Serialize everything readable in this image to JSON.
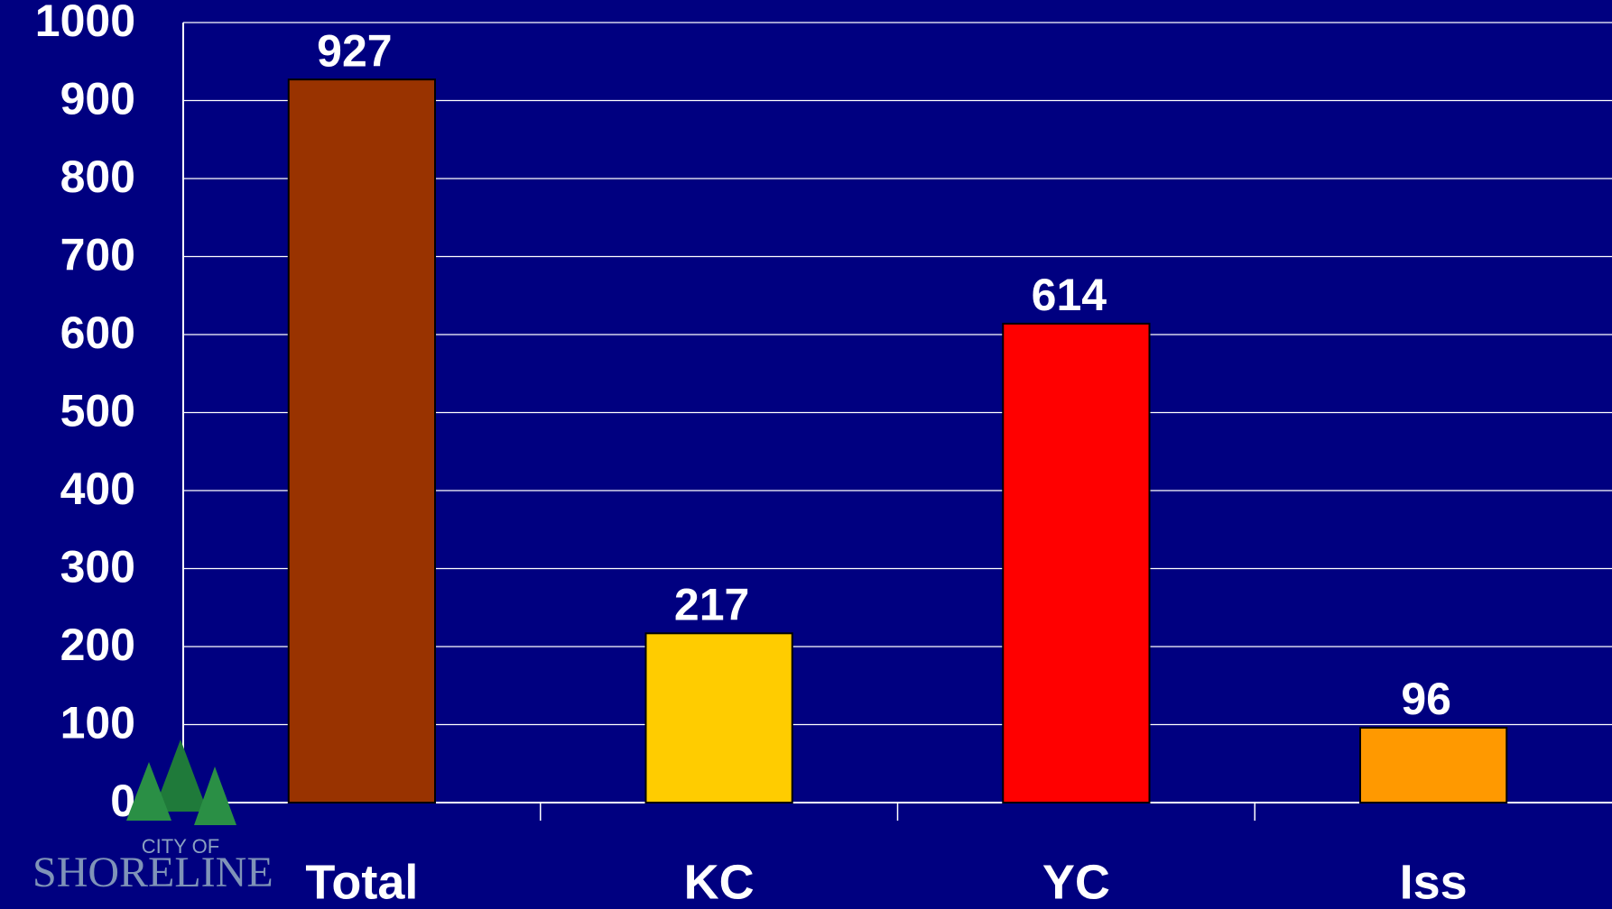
{
  "chart_data": {
    "type": "bar",
    "categories": [
      "Total",
      "KC",
      "YC",
      "Iss"
    ],
    "values": [
      927,
      217,
      614,
      96
    ],
    "colors": [
      "#993300",
      "#ffcc00",
      "#ff0000",
      "#ff9900"
    ],
    "ylim": [
      0,
      1000
    ],
    "yticks": [
      0,
      100,
      200,
      300,
      400,
      500,
      600,
      700,
      800,
      900,
      1000
    ],
    "grid": true
  },
  "logo": {
    "line1": "CITY OF",
    "line2": "SHORELINE"
  }
}
